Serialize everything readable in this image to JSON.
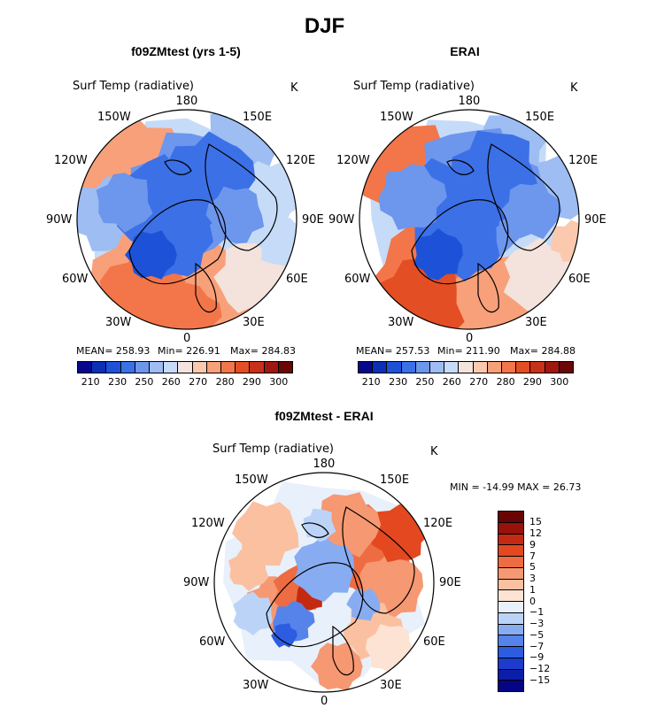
{
  "main_title": "DJF",
  "colors": {
    "abs": [
      "#08088e",
      "#0c2fb8",
      "#1d52d8",
      "#3c70e6",
      "#6d96ed",
      "#9dbdf3",
      "#c6dbf8",
      "#f3e3dc",
      "#fbc9ad",
      "#f8a07a",
      "#f27649",
      "#e44e24",
      "#c8301a",
      "#a01710",
      "#6b0606"
    ],
    "diff": [
      "#040484",
      "#0a1ea8",
      "#1b3ccc",
      "#2c5ce0",
      "#5683ea",
      "#88acf2",
      "#bcd3f8",
      "#e8f0fb",
      "#fde3d4",
      "#fbc0a0",
      "#f69872",
      "#ee6c42",
      "#e34820",
      "#c42a12",
      "#98120a",
      "#680504"
    ],
    "land_outline": "#000000"
  },
  "panels": [
    {
      "id": "model",
      "title": "f09ZMtest (yrs 1-5)",
      "field_label": "Surf Temp (radiative)",
      "units": "K",
      "lon_labels": [
        "180",
        "150E",
        "120E",
        "90E",
        "60E",
        "30E",
        "0",
        "30W",
        "60W",
        "90W",
        "120W",
        "150W"
      ],
      "stats": {
        "mean": "MEAN= 258.93",
        "min": "Min= 226.91",
        "max": "Max= 284.83"
      },
      "colorbar_ticks": [
        "210",
        "230",
        "250",
        "260",
        "270",
        "280",
        "290",
        "300"
      ]
    },
    {
      "id": "obs",
      "title": "ERAI",
      "field_label": "Surf Temp (radiative)",
      "units": "K",
      "lon_labels": [
        "180",
        "150E",
        "120E",
        "90E",
        "60E",
        "30E",
        "0",
        "30W",
        "60W",
        "90W",
        "120W",
        "150W"
      ],
      "stats": {
        "mean": "MEAN= 257.53",
        "min": "Min= 211.90",
        "max": "Max= 284.88"
      },
      "colorbar_ticks": [
        "210",
        "230",
        "250",
        "260",
        "270",
        "280",
        "290",
        "300"
      ]
    },
    {
      "id": "diff",
      "title": "f09ZMtest - ERAI",
      "field_label": "Surf Temp (radiative)",
      "units": "K",
      "lon_labels": [
        "180",
        "150E",
        "120E",
        "90E",
        "60E",
        "30E",
        "0",
        "30W",
        "60W",
        "90W",
        "120W",
        "150W"
      ],
      "stats_line": "MIN = -14.99 MAX =  26.73",
      "colorbar_ticks": [
        "15",
        "12",
        "9",
        "7",
        "5",
        "3",
        "1",
        "0",
        "−1",
        "−3",
        "−5",
        "−7",
        "−9",
        "−12",
        "−15"
      ]
    }
  ]
}
